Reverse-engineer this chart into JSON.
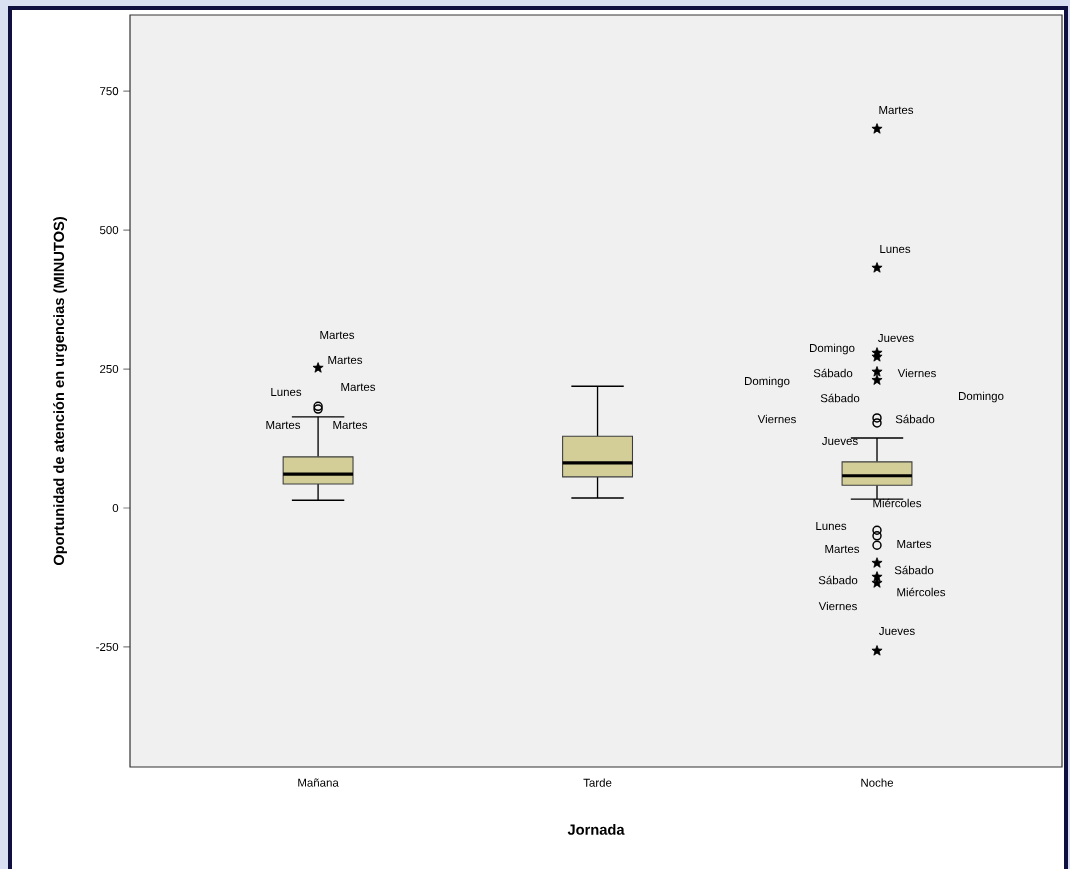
{
  "chart_data": {
    "type": "box",
    "xlabel": "Jornada",
    "ylabel": "Oportunidad de atención en urgencias  (MINUTOS)",
    "categories": [
      "Mañana",
      "Tarde",
      "Noche"
    ],
    "color": "#d3ce98",
    "boxes": [
      {
        "low": 14,
        "q1": 43,
        "median": 61,
        "q3": 92,
        "high": 164,
        "outliers": [
          178,
          183
        ]
      },
      {
        "low": 18,
        "q1": 56,
        "median": 81,
        "q3": 129,
        "high": 219
      },
      {
        "low": 16,
        "q1": 41,
        "median": 58,
        "q3": 83,
        "high": 126,
        "outliers": [
          162,
          153,
          -40,
          -50,
          -67
        ]
      }
    ],
    "series": [
      {
        "type": "scatter",
        "marker": "star",
        "color": "#000000",
        "x": [
          "Mañana",
          "Noche",
          "Noche",
          "Noche",
          "Noche",
          "Noche",
          "Noche",
          "Noche",
          "Noche",
          "Noche",
          "Noche"
        ],
        "values": [
          252,
          682,
          432,
          279,
          272,
          245,
          230,
          -99,
          -124,
          -135,
          -257
        ]
      }
    ],
    "ylim": [
      -466,
      887
    ],
    "yticks": [
      -250,
      0,
      250,
      500,
      750
    ],
    "annotations": [
      "Martes",
      "Martes",
      "Lunes",
      "Martes",
      "Martes",
      "Martes",
      "Martes",
      "Lunes",
      "Jueves",
      "Domingo",
      "Sábado",
      "Viernes",
      "Domingo",
      "Sábado",
      "Domingo",
      "Viernes",
      "Sábado",
      "Jueves",
      "Miércoles",
      "Lunes",
      "Martes",
      "Martes",
      "Sábado",
      "Sábado",
      "Miércoles",
      "Viernes",
      "Jueves"
    ]
  }
}
